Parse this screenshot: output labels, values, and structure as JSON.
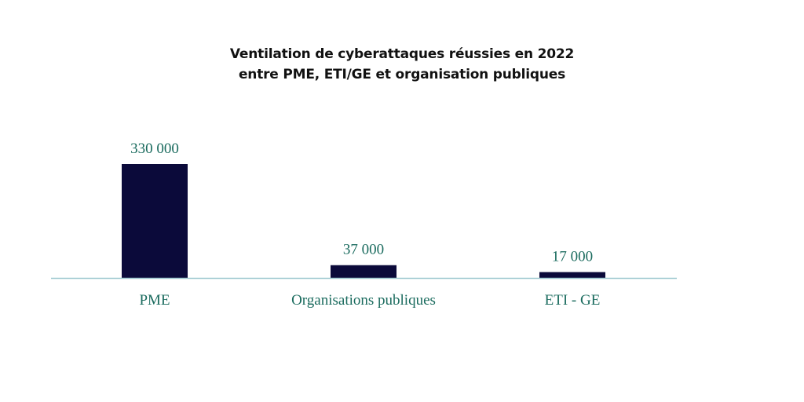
{
  "chart_data": {
    "type": "bar",
    "title_lines": [
      "Ventilation de cyberattaques réussies en 2022",
      "entre PME, ETI/GE et organisation publiques"
    ],
    "categories": [
      "PME",
      "Organisations publiques",
      "ETI - GE"
    ],
    "values": [
      330000,
      37000,
      17000
    ],
    "data_labels": [
      "330 000",
      "37 000",
      "17 000"
    ],
    "xlabel": "",
    "ylabel": "",
    "ylim": [
      0,
      330000
    ],
    "grid": false,
    "legend": "none"
  },
  "colors": {
    "bar": "#0b0a3a",
    "baseline": "#9ec9d0",
    "labels": "#1a6b5e",
    "title": "#111111"
  }
}
